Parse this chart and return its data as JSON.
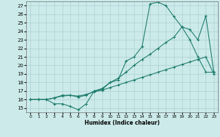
{
  "xlabel": "Humidex (Indice chaleur)",
  "xticks": [
    0,
    1,
    2,
    3,
    4,
    5,
    6,
    7,
    8,
    9,
    10,
    11,
    12,
    13,
    14,
    15,
    16,
    17,
    18,
    19,
    20,
    21,
    22,
    23
  ],
  "yticks": [
    15,
    16,
    17,
    18,
    19,
    20,
    21,
    22,
    23,
    24,
    25,
    26,
    27
  ],
  "line_color": "#1a7a6a",
  "background_color": "#cceaea",
  "grid_color": "#aacfcf",
  "c1x": [
    0,
    1,
    2,
    3,
    4,
    5,
    6,
    7,
    8,
    9,
    10,
    11,
    12,
    13,
    14,
    15,
    16,
    17,
    18,
    19,
    20,
    21,
    22,
    23
  ],
  "c1y": [
    16,
    16,
    16,
    15.5,
    15.5,
    15.2,
    14.8,
    15.5,
    17.0,
    17.2,
    18.0,
    18.3,
    20.5,
    21.0,
    22.2,
    27.2,
    27.4,
    27.0,
    25.7,
    24.5,
    23.0,
    21.0,
    19.2,
    19.2
  ],
  "c2x": [
    0,
    1,
    2,
    3,
    4,
    5,
    6,
    7,
    8,
    9,
    10,
    11,
    12,
    13,
    14,
    15,
    16,
    17,
    18,
    19,
    20,
    21,
    22,
    23
  ],
  "c2y": [
    16,
    16,
    16,
    16.2,
    16.5,
    16.5,
    16.3,
    16.5,
    17.0,
    17.3,
    18.0,
    18.5,
    19.2,
    20.0,
    20.7,
    21.3,
    22.0,
    22.7,
    23.3,
    24.5,
    24.2,
    23.0,
    25.8,
    19.2
  ],
  "c3x": [
    0,
    1,
    2,
    3,
    4,
    5,
    6,
    7,
    8,
    9,
    10,
    11,
    12,
    13,
    14,
    15,
    16,
    17,
    18,
    19,
    20,
    21,
    22,
    23
  ],
  "c3y": [
    16,
    16,
    16,
    16.2,
    16.4,
    16.5,
    16.4,
    16.6,
    16.9,
    17.1,
    17.4,
    17.7,
    18.0,
    18.3,
    18.6,
    18.9,
    19.2,
    19.5,
    19.8,
    20.1,
    20.4,
    20.7,
    21.0,
    19.0
  ]
}
